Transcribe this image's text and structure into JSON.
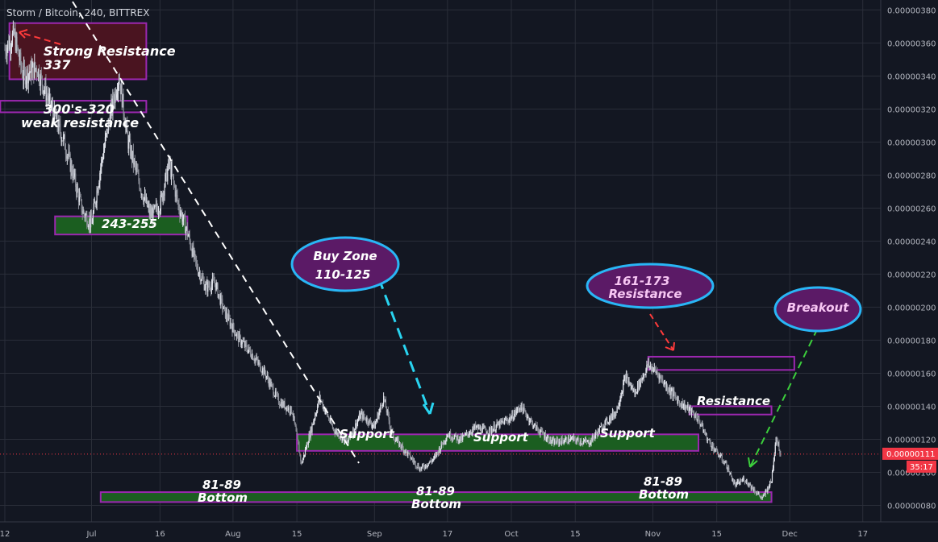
{
  "header": {
    "symbol": "Storm / Bitcoin",
    "interval": "240",
    "exchange": "BITTREX"
  },
  "price_scale": {
    "current_price_label": "0.00000111",
    "countdown_label": "35:17",
    "accent_color": "#f23645"
  },
  "chart_data": {
    "type": "candlestick",
    "title": "Storm / Bitcoin, 240, BITTREX",
    "y_ticks": [
      "0.00000080",
      "0.00000100",
      "0.00000120",
      "0.00000140",
      "0.00000160",
      "0.00000180",
      "0.00000200",
      "0.00000220",
      "0.00000240",
      "0.00000260",
      "0.00000280",
      "0.00000300",
      "0.00000320",
      "0.00000340",
      "0.00000360",
      "0.00000380"
    ],
    "y_tick_values": [
      80,
      100,
      120,
      140,
      160,
      180,
      200,
      220,
      240,
      260,
      280,
      300,
      320,
      340,
      360,
      380
    ],
    "ylim_satoshi": [
      70,
      386
    ],
    "x_ticks": [
      "12",
      "Jul",
      "16",
      "Aug",
      "15",
      "Sep",
      "17",
      "Oct",
      "15",
      "Nov",
      "15",
      "Dec",
      "17"
    ],
    "x_tick_dates": [
      "2018-06-12",
      "2018-07-01",
      "2018-07-16",
      "2018-08-01",
      "2018-08-15",
      "2018-09-01",
      "2018-09-17",
      "2018-10-01",
      "2018-10-15",
      "2018-11-01",
      "2018-11-15",
      "2018-12-01",
      "2018-12-17"
    ],
    "xlim": [
      "2018-06-12",
      "2018-12-22"
    ],
    "current_price": 111,
    "price_path": [
      [
        "2018-06-12",
        356
      ],
      [
        "2018-06-14",
        365
      ],
      [
        "2018-06-16",
        340
      ],
      [
        "2018-06-19",
        345
      ],
      [
        "2018-06-22",
        322
      ],
      [
        "2018-06-25",
        300
      ],
      [
        "2018-06-27",
        280
      ],
      [
        "2018-06-29",
        258
      ],
      [
        "2018-07-01",
        250
      ],
      [
        "2018-07-03",
        285
      ],
      [
        "2018-07-05",
        315
      ],
      [
        "2018-07-07",
        340
      ],
      [
        "2018-07-09",
        300
      ],
      [
        "2018-07-12",
        270
      ],
      [
        "2018-07-14",
        255
      ],
      [
        "2018-07-16",
        262
      ],
      [
        "2018-07-18",
        287
      ],
      [
        "2018-07-20",
        262
      ],
      [
        "2018-07-22",
        245
      ],
      [
        "2018-07-24",
        225
      ],
      [
        "2018-07-26",
        212
      ],
      [
        "2018-07-28",
        215
      ],
      [
        "2018-07-30",
        198
      ],
      [
        "2018-08-02",
        182
      ],
      [
        "2018-08-05",
        172
      ],
      [
        "2018-08-08",
        160
      ],
      [
        "2018-08-11",
        143
      ],
      [
        "2018-08-14",
        137
      ],
      [
        "2018-08-16",
        105
      ],
      [
        "2018-08-18",
        125
      ],
      [
        "2018-08-20",
        145
      ],
      [
        "2018-08-23",
        126
      ],
      [
        "2018-08-26",
        118
      ],
      [
        "2018-08-29",
        135
      ],
      [
        "2018-09-01",
        128
      ],
      [
        "2018-09-03",
        145
      ],
      [
        "2018-09-05",
        122
      ],
      [
        "2018-09-08",
        112
      ],
      [
        "2018-09-11",
        102
      ],
      [
        "2018-09-14",
        108
      ],
      [
        "2018-09-17",
        123
      ],
      [
        "2018-09-20",
        120
      ],
      [
        "2018-09-23",
        127
      ],
      [
        "2018-09-26",
        125
      ],
      [
        "2018-09-29",
        130
      ],
      [
        "2018-10-01",
        133
      ],
      [
        "2018-10-03",
        140
      ],
      [
        "2018-10-06",
        128
      ],
      [
        "2018-10-10",
        118
      ],
      [
        "2018-10-14",
        120
      ],
      [
        "2018-10-18",
        118
      ],
      [
        "2018-10-21",
        128
      ],
      [
        "2018-10-24",
        137
      ],
      [
        "2018-10-26",
        158
      ],
      [
        "2018-10-28",
        148
      ],
      [
        "2018-10-31",
        165
      ],
      [
        "2018-11-02",
        160
      ],
      [
        "2018-11-04",
        152
      ],
      [
        "2018-11-07",
        142
      ],
      [
        "2018-11-09",
        138
      ],
      [
        "2018-11-11",
        132
      ],
      [
        "2018-11-13",
        120
      ],
      [
        "2018-11-15",
        112
      ],
      [
        "2018-11-17",
        105
      ],
      [
        "2018-11-19",
        92
      ],
      [
        "2018-11-21",
        96
      ],
      [
        "2018-11-23",
        90
      ],
      [
        "2018-11-25",
        84
      ],
      [
        "2018-11-27",
        95
      ],
      [
        "2018-11-28",
        122
      ],
      [
        "2018-11-29",
        111
      ]
    ]
  },
  "zones": [
    {
      "label": "Strong Resistance 337",
      "color": "red",
      "from": "2018-06-13",
      "to": "2018-07-13",
      "low": 338,
      "high": 372
    },
    {
      "label": "300's-320 weak resistance",
      "color": "purple",
      "from": "2018-06-11",
      "to": "2018-07-13",
      "low": 318,
      "high": 325
    },
    {
      "label": "243-255",
      "color": "green",
      "from": "2018-06-23",
      "to": "2018-07-22",
      "low": 244,
      "high": 255
    },
    {
      "label": "Support",
      "color": "green",
      "from": "2018-08-15",
      "to": "2018-11-11",
      "low": 113,
      "high": 123
    },
    {
      "label": "81-89 Bottom",
      "color": "green",
      "from": "2018-07-03",
      "to": "2018-11-27",
      "low": 82,
      "high": 88
    },
    {
      "label": "161-173 Resistance",
      "color": "purple",
      "from": "2018-10-31",
      "to": "2018-12-02",
      "low": 162,
      "high": 170
    },
    {
      "label": "Resistance",
      "color": "purple",
      "from": "2018-11-09",
      "to": "2018-11-27",
      "low": 135,
      "high": 140
    }
  ],
  "annotations": {
    "strong_resistance": {
      "line1": "Strong Resistance",
      "line2": "337"
    },
    "weak_resistance": {
      "line1": "300's-320",
      "line2": "weak resistance"
    },
    "mid_zone": "243-255",
    "buy_zone": {
      "line1": "Buy Zone",
      "line2": "110-125"
    },
    "resistance_bubble": {
      "line1": "161-173",
      "line2": "Resistance"
    },
    "breakout": "Breakout",
    "resistance": "Resistance",
    "support1": "Support",
    "support2": "Support",
    "support3": "Support",
    "bottom1": {
      "line1": "81-89",
      "line2": "Bottom"
    },
    "bottom2": {
      "line1": "81-89",
      "line2": "Bottom"
    },
    "bottom3": {
      "line1": "81-89",
      "line2": "Bottom"
    }
  },
  "colors": {
    "background": "#131722",
    "grid": "#2a2e39",
    "candle_up": "#e0e3eb",
    "candle_down": "#8c8f99",
    "zone_red_fill": "#4a1420",
    "zone_purple_border": "#9c27b0",
    "zone_green_fill": "#1b5e20",
    "bubble_fill": "#5b1a66",
    "bubble_border": "#29b6f6",
    "arrow_cyan": "#29d4f0",
    "arrow_red": "#ff3b3b",
    "arrow_green": "#3ccf3c"
  }
}
